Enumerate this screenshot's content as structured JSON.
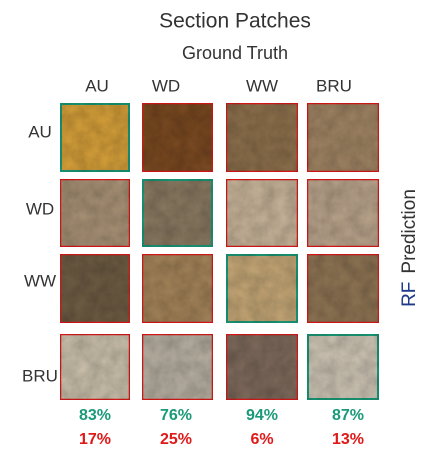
{
  "header": {
    "title": "Section Patches",
    "subtitle": "Ground Truth"
  },
  "columns": [
    "AU",
    "WD",
    "WW",
    "BRU"
  ],
  "rows": [
    "AU",
    "WD",
    "WW",
    "BRU"
  ],
  "axis_label": {
    "model": "RF",
    "text": "Prediction"
  },
  "correct": [
    "83%",
    "76%",
    "94%",
    "87%"
  ],
  "incorrect": [
    "17%",
    "25%",
    "6%",
    "13%"
  ]
}
